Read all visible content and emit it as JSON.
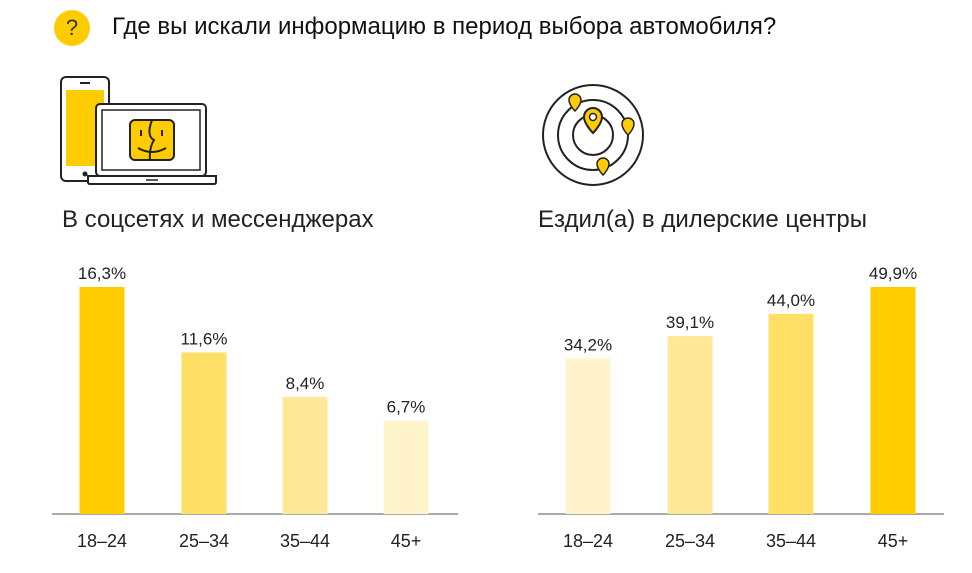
{
  "header": {
    "badge": "?",
    "title": "Где вы искали информацию в период выбора автомобиля?"
  },
  "icons": {
    "left": "devices-icon",
    "right": "location-orbit-icon"
  },
  "colors": {
    "accent": "#FFCC00",
    "shade_1": "#FFCC00",
    "shade_2": "#FFDF66",
    "shade_3": "#FFE999",
    "shade_4": "#FFF4CC",
    "axis": "#555555"
  },
  "chart_data": [
    {
      "type": "bar",
      "title": "В соцсетях и мессенджерах",
      "categories": [
        "18–24",
        "25–34",
        "35–44",
        "45+"
      ],
      "values": [
        16.3,
        11.6,
        8.4,
        6.7
      ],
      "value_labels": [
        "16,3%",
        "11,6%",
        "8,4%",
        "6,7%"
      ],
      "bar_colors": [
        "#FFCC00",
        "#FFDF66",
        "#FFE999",
        "#FFF4CC"
      ],
      "ymax": 16.3
    },
    {
      "type": "bar",
      "title": "Ездил(а) в дилерские центры",
      "categories": [
        "18–24",
        "25–34",
        "35–44",
        "45+"
      ],
      "values": [
        34.2,
        39.1,
        44.0,
        49.9
      ],
      "value_labels": [
        "34,2%",
        "39,1%",
        "44,0%",
        "49,9%"
      ],
      "bar_colors": [
        "#FFF4CC",
        "#FFE999",
        "#FFDF66",
        "#FFCC00"
      ],
      "ymax": 49.9
    }
  ]
}
